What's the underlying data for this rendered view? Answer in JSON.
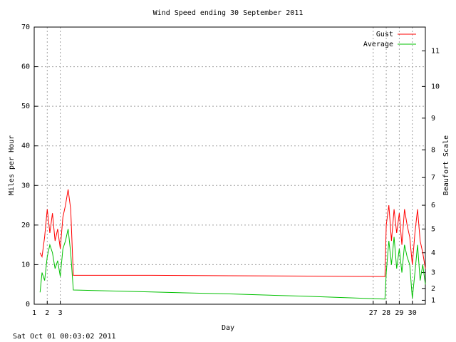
{
  "chart_data": {
    "type": "line",
    "title": "Wind Speed ending 30 September 2011",
    "xlabel": "Day",
    "ylabel": "Miles per Hour",
    "y2label": "Beaufort Scale",
    "footnote": "Sat Oct 01 00:03:02 2011",
    "x": [
      1.45,
      1.6,
      1.8,
      2.0,
      2.2,
      2.4,
      2.6,
      2.8,
      3.0,
      3.2,
      3.4,
      3.6,
      3.8,
      4.0,
      10,
      16,
      22,
      27.9,
      28.0,
      28.2,
      28.4,
      28.6,
      28.8,
      29.0,
      29.2,
      29.4,
      29.6,
      29.8,
      30.0,
      30.2,
      30.4,
      30.6,
      30.8,
      31.0
    ],
    "series": [
      {
        "name": "Gust",
        "color": "#ff0000",
        "values": [
          13,
          12,
          17,
          24,
          18,
          23,
          16,
          19,
          14,
          22,
          25,
          29,
          24,
          7.3,
          7.3,
          7.2,
          7.1,
          7.0,
          20,
          25,
          16,
          24,
          18,
          23,
          15,
          24,
          20,
          17,
          10,
          18,
          24,
          16,
          13,
          9
        ]
      },
      {
        "name": "Average",
        "color": "#00c000",
        "values": [
          3,
          8,
          6,
          12,
          15,
          13,
          9,
          11,
          7,
          14,
          16,
          19,
          13,
          3.6,
          3.1,
          2.6,
          2.0,
          1.3,
          8,
          16,
          10,
          17,
          9,
          14,
          8,
          15,
          12,
          10,
          1.5,
          8,
          15,
          6,
          10,
          5
        ]
      }
    ],
    "xlim": [
      1,
      31
    ],
    "xticks": [
      1,
      2,
      3,
      27,
      28,
      29,
      30
    ],
    "ylim": [
      0,
      70
    ],
    "yticks": [
      0,
      10,
      20,
      30,
      40,
      50,
      60,
      70
    ],
    "y2lim": [
      0,
      70
    ],
    "y2ticks": [
      1,
      {
        "value": 4,
        "label": "2"
      },
      {
        "value": 8,
        "label": "3"
      },
      {
        "value": 13,
        "label": "4"
      },
      {
        "value": 19,
        "label": "5"
      },
      {
        "value": 25,
        "label": "6"
      },
      {
        "value": 32,
        "label": "7"
      },
      {
        "value": 39,
        "label": "8"
      },
      {
        "value": 47,
        "label": "9"
      },
      {
        "value": 55,
        "label": "10"
      },
      {
        "value": 64,
        "label": "11"
      }
    ],
    "grid": true,
    "legend": "top-right"
  }
}
